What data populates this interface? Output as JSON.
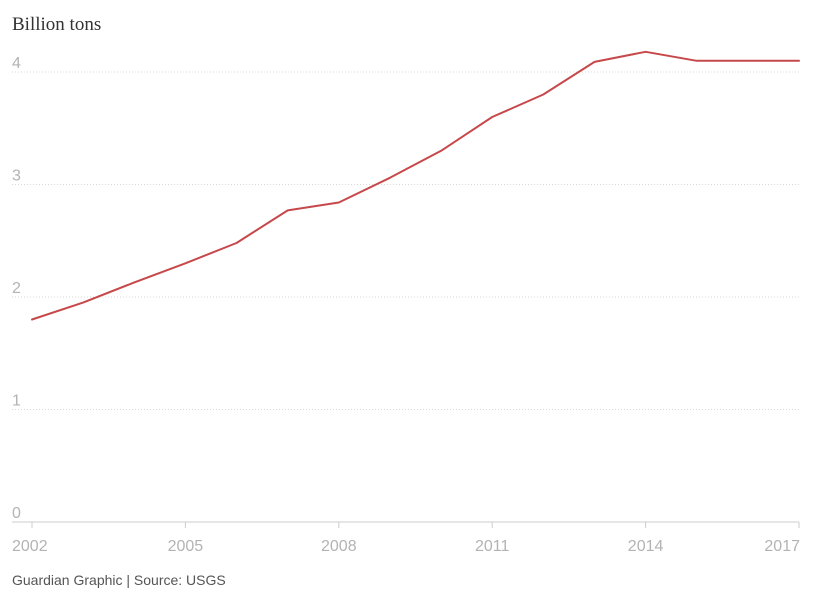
{
  "chart_data": {
    "type": "line",
    "ylabel": "Billion tons",
    "xlabel": "",
    "x": [
      2002,
      2003,
      2004,
      2005,
      2006,
      2007,
      2008,
      2009,
      2010,
      2011,
      2012,
      2013,
      2014,
      2015,
      2016,
      2017
    ],
    "series": [
      {
        "values": [
          1.8,
          1.95,
          2.13,
          2.3,
          2.48,
          2.77,
          2.84,
          3.06,
          3.3,
          3.6,
          3.8,
          4.09,
          4.18,
          4.1,
          4.1,
          4.1
        ],
        "color": "#c7484a"
      }
    ],
    "xlim": [
      2002,
      2017
    ],
    "ylim": [
      0,
      4.4
    ],
    "xticks": [
      2002,
      2005,
      2008,
      2011,
      2014,
      2017
    ],
    "yticks": [
      0,
      1,
      2,
      3,
      4
    ],
    "grid": true,
    "gridlines_color": "#d9d9d9",
    "axis_color": "#cccccc"
  },
  "source": "Guardian Graphic | Source: USGS"
}
